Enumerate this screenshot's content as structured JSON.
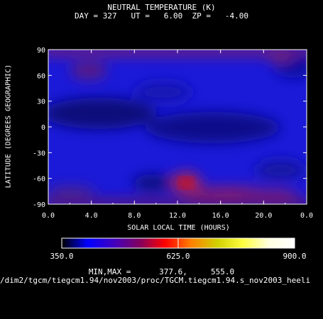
{
  "chart_data": {
    "type": "heatmap",
    "title": "NEUTRAL TEMPERATURE (K)",
    "subtitle": "DAY = 327   UT =   6.00  ZP =   -4.00",
    "xlabel": "SOLAR LOCAL TIME (HOURS)",
    "ylabel": "LATITUDE (DEGREES GEOGRAPHIC)",
    "xlim": [
      0.0,
      24.0
    ],
    "ylim": [
      -90,
      90
    ],
    "x_ticks": [
      "0.0",
      "4.0",
      "8.0",
      "12.0",
      "16.0",
      "20.0",
      "0.0"
    ],
    "y_ticks": [
      "-90",
      "-60",
      "-30",
      "0",
      "30",
      "60",
      "90"
    ],
    "colorbar": {
      "min": 350.0,
      "max": 900.0,
      "tick_labels": [
        "350.0",
        "625.0",
        "900.0"
      ],
      "colors": [
        "#000000",
        "#0000ff",
        "#4000c0",
        "#800060",
        "#ff0000",
        "#ff8000",
        "#d0d000",
        "#ffff40",
        "#ffffe0",
        "#ffffff"
      ]
    },
    "min_max_label": "MIN,MAX =",
    "min_value": "377.6,",
    "max_value": "555.0",
    "features": [
      {
        "x": 12.8,
        "y": -62,
        "value": 555.0
      },
      {
        "x": 3.2,
        "y": 62,
        "value": 450
      },
      {
        "x": 23.0,
        "y": 65,
        "value": 400
      }
    ]
  },
  "footer": {
    "file_path": "/dim2/tgcm/tiegcm1.94/nov2003/proc/TGCM.tiegcm1.94.s_nov2003_heeli"
  }
}
